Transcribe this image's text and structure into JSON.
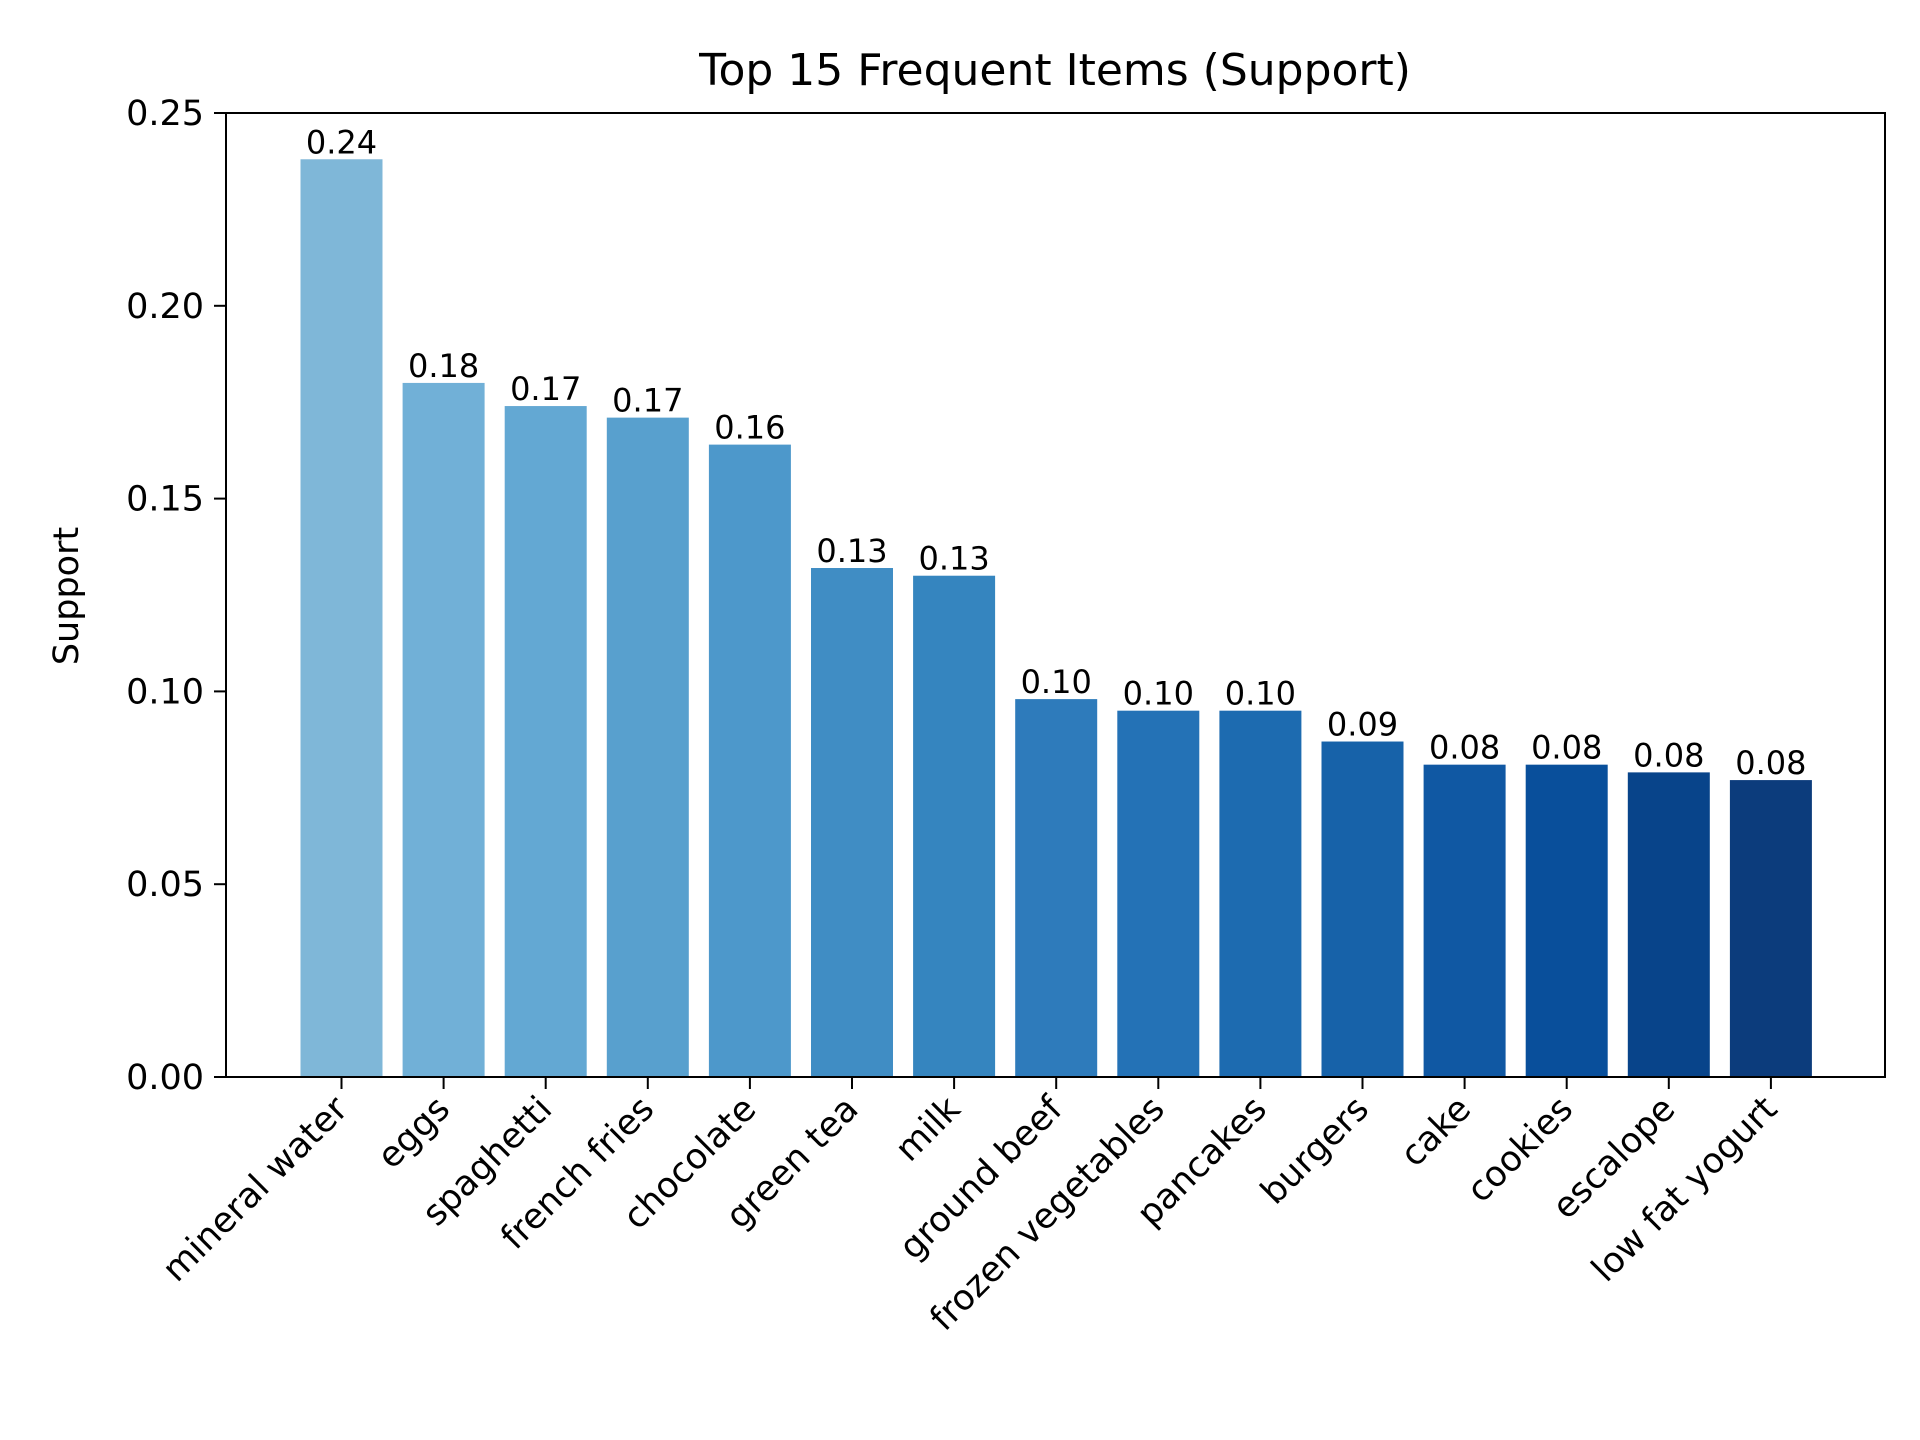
{
  "chart_data": {
    "type": "bar",
    "title": "Top 15 Frequent Items (Support)",
    "xlabel": "",
    "ylabel": "Support",
    "ylim": [
      0,
      0.25
    ],
    "yticks": [
      "0.00",
      "0.05",
      "0.10",
      "0.15",
      "0.20",
      "0.25"
    ],
    "grid": false,
    "categories": [
      "mineral water",
      "eggs",
      "spaghetti",
      "french fries",
      "chocolate",
      "green tea",
      "milk",
      "ground beef",
      "frozen vegetables",
      "pancakes",
      "burgers",
      "cake",
      "cookies",
      "escalope",
      "low fat yogurt"
    ],
    "values": [
      0.238,
      0.18,
      0.174,
      0.171,
      0.164,
      0.132,
      0.13,
      0.098,
      0.095,
      0.095,
      0.087,
      0.081,
      0.081,
      0.079,
      0.077
    ],
    "labels": [
      "0.24",
      "0.18",
      "0.17",
      "0.17",
      "0.16",
      "0.13",
      "0.13",
      "0.10",
      "0.10",
      "0.10",
      "0.09",
      "0.08",
      "0.08",
      "0.08",
      "0.08"
    ],
    "colors": [
      "#7fb7d8",
      "#71b0d7",
      "#63a8d3",
      "#58a0ce",
      "#4d98cb",
      "#408dc4",
      "#3585bf",
      "#2e7bbb",
      "#2472b6",
      "#1d6bb0",
      "#1762a9",
      "#1058a3",
      "#094f9b",
      "#08448a",
      "#0c3c7c"
    ]
  }
}
